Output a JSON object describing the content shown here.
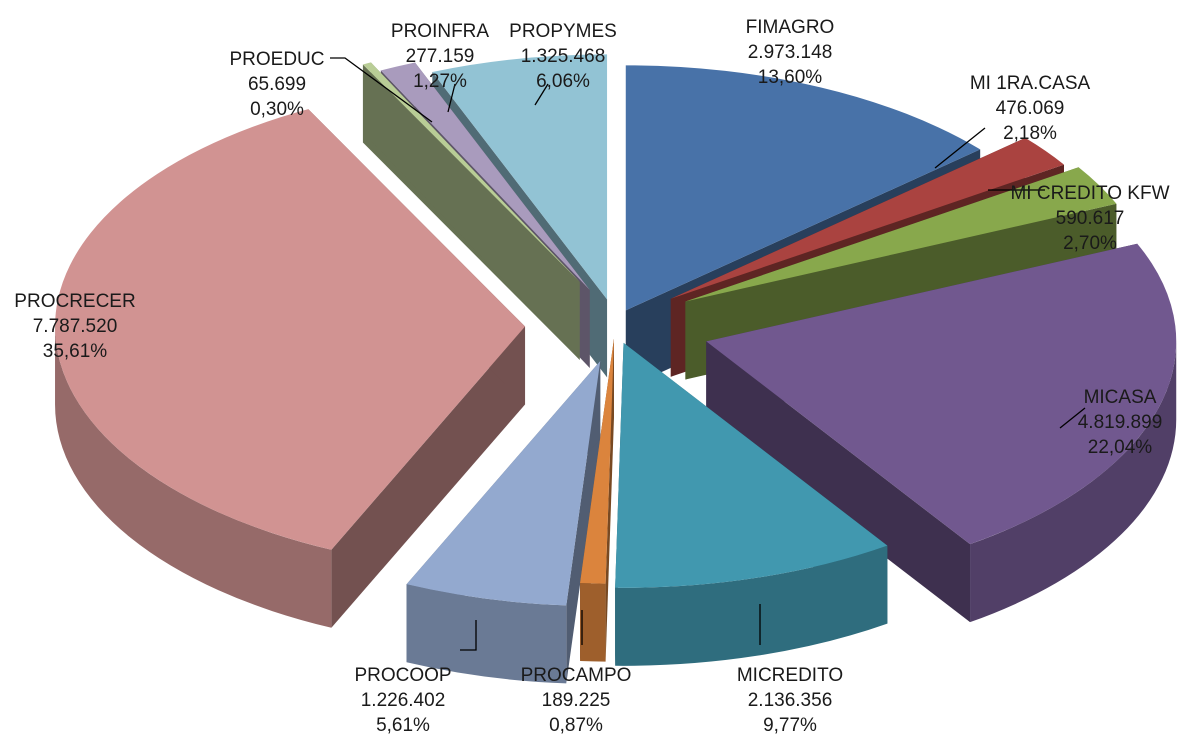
{
  "chart_data": {
    "type": "pie",
    "variant": "3d-exploded",
    "title": "",
    "slices": [
      {
        "label": "FIMAGRO",
        "value": 2973148,
        "value_text": "2.973.148",
        "percent": 13.6,
        "percent_text": "13,60%",
        "color": "#4872A8"
      },
      {
        "label": "MI 1RA.CASA",
        "value": 476069,
        "value_text": "476.069",
        "percent": 2.18,
        "percent_text": "2,18%",
        "color": "#AA4340"
      },
      {
        "label": "MI CREDITO KFW",
        "value": 590617,
        "value_text": "590.617",
        "percent": 2.7,
        "percent_text": "2,70%",
        "color": "#88A84C"
      },
      {
        "label": "MICASA",
        "value": 4819899,
        "value_text": "4.819.899",
        "percent": 22.04,
        "percent_text": "22,04%",
        "color": "#71588F"
      },
      {
        "label": "MICREDITO",
        "value": 2136356,
        "value_text": "2.136.356",
        "percent": 9.77,
        "percent_text": "9,77%",
        "color": "#4198AF"
      },
      {
        "label": "PROCAMPO",
        "value": 189225,
        "value_text": "189.225",
        "percent": 0.87,
        "percent_text": "0,87%",
        "color": "#DB843D"
      },
      {
        "label": "PROCOOP",
        "value": 1226402,
        "value_text": "1.226.402",
        "percent": 5.61,
        "percent_text": "5,61%",
        "color": "#93A9CF"
      },
      {
        "label": "PROCRECER",
        "value": 7787520,
        "value_text": "7.787.520",
        "percent": 35.61,
        "percent_text": "35,61%",
        "color": "#D19392"
      },
      {
        "label": "PROEDUC",
        "value": 65699,
        "value_text": "65.699",
        "percent": 0.3,
        "percent_text": "0,30%",
        "color": "#B9CD96"
      },
      {
        "label": "PROINFRA",
        "value": 277159,
        "value_text": "277.159",
        "percent": 1.27,
        "percent_text": "1,27%",
        "color": "#A99BBD"
      },
      {
        "label": "PROPYMES",
        "value": 1325468,
        "value_text": "1.325.468",
        "percent": 6.06,
        "percent_text": "6,06%",
        "color": "#92C3D4"
      }
    ]
  }
}
